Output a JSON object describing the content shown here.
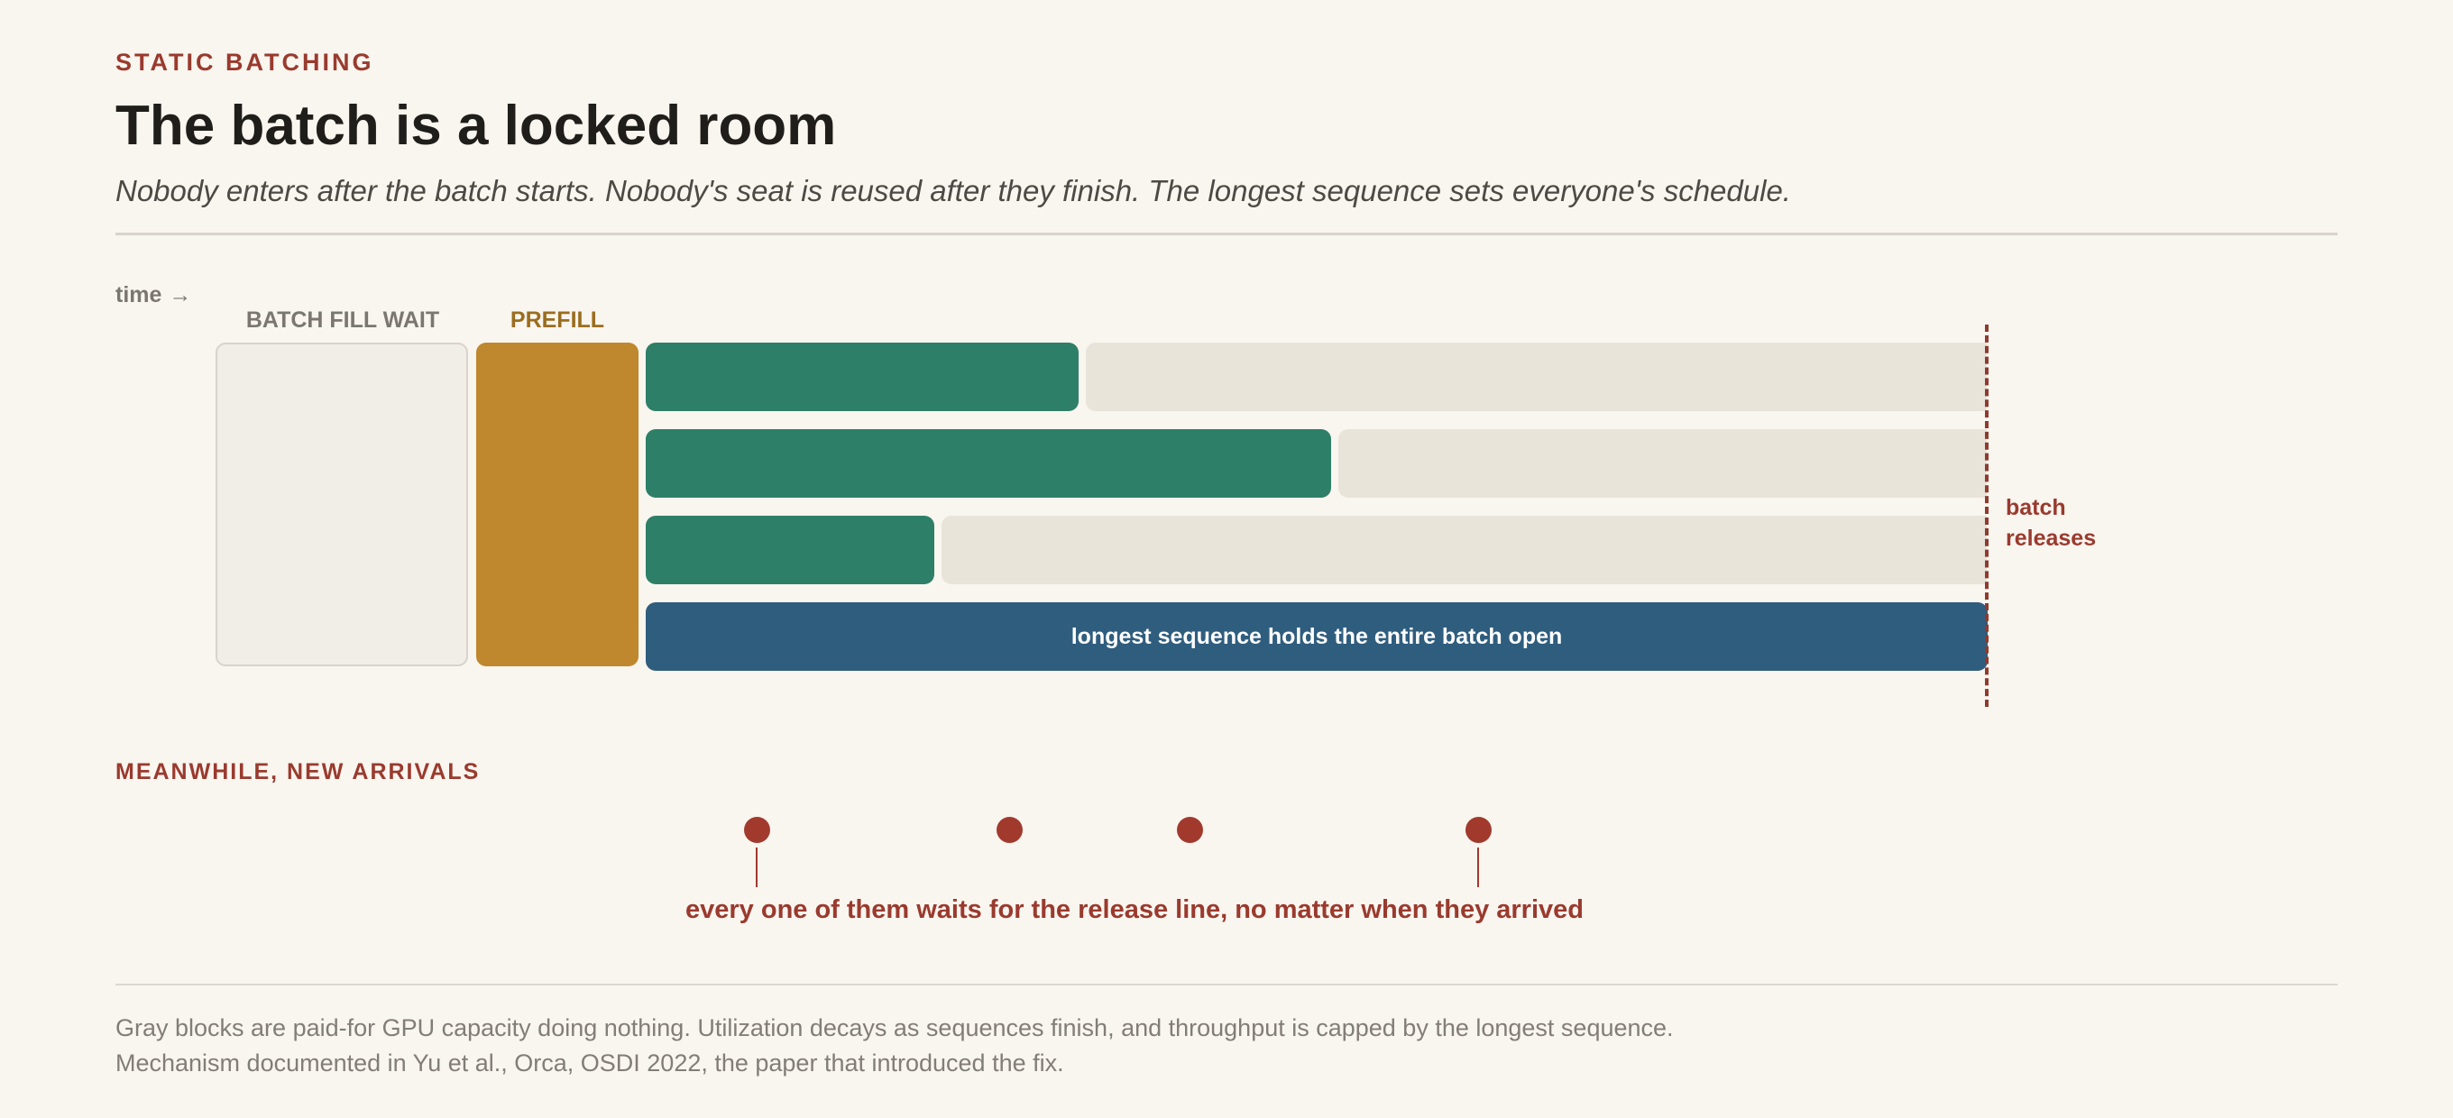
{
  "header": {
    "kicker": "STATIC BATCHING",
    "title": "The batch is a locked room",
    "subtitle": "Nobody enters after the batch starts. Nobody's seat is reused after they finish. The longest sequence sets everyone's schedule."
  },
  "timeline": {
    "time_label": "time",
    "time_arrow": "→",
    "phases": {
      "batch_fill_wait": "BATCH FILL WAIT",
      "prefill": "PREFILL"
    },
    "longest_sequence_label": "longest sequence holds the entire batch open",
    "release_label_line1": "batch",
    "release_label_line2": "releases"
  },
  "arrivals": {
    "section_label": "MEANWHILE, NEW ARRIVALS",
    "caption": "every one of them waits for the release line, no matter when they arrived"
  },
  "footer": {
    "line1": "Gray blocks are paid-for GPU capacity doing nothing. Utilization decays as sequences finish, and throughput is capped by the longest sequence.",
    "line2": "Mechanism documented in Yu et al., Orca, OSDI 2022, the paper that introduced the fix."
  },
  "colors": {
    "accent": "#9a3a2e",
    "wait": "#f1eee7",
    "prefill": "#bf872e",
    "decode": "#2e7f68",
    "idle": "#e8e4da",
    "longest": "#2f5d7e"
  }
}
